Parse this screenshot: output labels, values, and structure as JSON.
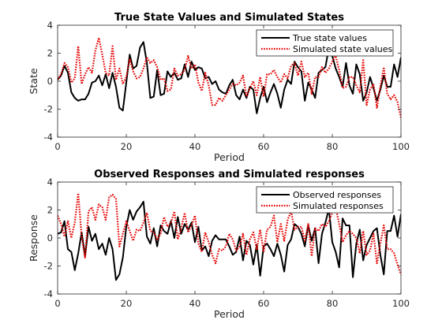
{
  "chart_data": [
    {
      "type": "line",
      "title": "True State Values and Simulated States",
      "xlabel": "Period",
      "ylabel": "State",
      "xlim": [
        0,
        100
      ],
      "ylim": [
        -4,
        4
      ],
      "xticks": [
        0,
        20,
        40,
        60,
        80,
        100
      ],
      "yticks": [
        -4,
        -2,
        0,
        2,
        4
      ],
      "legend_position": "top-right",
      "x": [
        0,
        1,
        2,
        3,
        4,
        5,
        6,
        7,
        8,
        9,
        10,
        11,
        12,
        13,
        14,
        15,
        16,
        17,
        18,
        19,
        20,
        21,
        22,
        23,
        24,
        25,
        26,
        27,
        28,
        29,
        30,
        31,
        32,
        33,
        34,
        35,
        36,
        37,
        38,
        39,
        40,
        41,
        42,
        43,
        44,
        45,
        46,
        47,
        48,
        49,
        50,
        51,
        52,
        53,
        54,
        55,
        56,
        57,
        58,
        59,
        60,
        61,
        62,
        63,
        64,
        65,
        66,
        67,
        68,
        69,
        70,
        71,
        72,
        73,
        74,
        75,
        76,
        77,
        78,
        79,
        80,
        81,
        82,
        83,
        84,
        85,
        86,
        87,
        88,
        89,
        90,
        91,
        92,
        93,
        94,
        95,
        96,
        97,
        98,
        99,
        100
      ],
      "series": [
        {
          "name": "True state values",
          "color": "#000000",
          "style": "solid",
          "values": [
            0.1,
            0.4,
            1.1,
            0.6,
            -0.8,
            -1.2,
            -1.4,
            -1.3,
            -1.3,
            -0.9,
            -0.1,
            0.0,
            0.4,
            -0.3,
            0.5,
            -0.5,
            0.6,
            -0.4,
            -1.9,
            -2.1,
            -0.1,
            1.9,
            0.9,
            1.1,
            2.4,
            2.8,
            1.3,
            -1.2,
            -1.1,
            0.8,
            -1.0,
            -0.9,
            0.7,
            0.3,
            0.6,
            0.1,
            0.2,
            1.2,
            0.3,
            1.4,
            0.8,
            1.0,
            0.9,
            0.2,
            0.3,
            -0.2,
            0.0,
            -0.6,
            -0.8,
            -0.9,
            -0.3,
            0.1,
            -1.0,
            -1.3,
            -0.6,
            -1.2,
            -0.4,
            -0.6,
            -2.3,
            -1.2,
            -0.4,
            -1.5,
            -0.8,
            -0.2,
            -0.9,
            -1.9,
            -0.6,
            0.1,
            -0.2,
            1.4,
            1.0,
            0.7,
            -1.4,
            -0.1,
            -0.6,
            -1.2,
            0.6,
            0.8,
            1.0,
            2.4,
            1.8,
            0.9,
            0.3,
            -0.4,
            1.3,
            -0.3,
            -0.9,
            1.2,
            0.5,
            -1.4,
            -0.8,
            0.3,
            -0.5,
            -1.4,
            -0.6,
            0.4,
            -0.4,
            -0.4,
            1.2,
            0.3,
            1.7
          ]
        },
        {
          "name": "Simulated state values",
          "color": "#e60000",
          "style": "dotted",
          "values": [
            0.1,
            0.5,
            1.3,
            1.0,
            -0.1,
            0.2,
            2.5,
            -0.2,
            0.5,
            1.0,
            0.6,
            2.2,
            3.1,
            1.9,
            0.6,
            0.4,
            2.5,
            0.1,
            0.9,
            -0.2,
            0.3,
            1.6,
            0.7,
            0.2,
            0.3,
            0.9,
            1.7,
            1.3,
            1.5,
            1.0,
            0.1,
            0.2,
            -0.7,
            -0.6,
            0.9,
            0.4,
            0.5,
            0.8,
            1.8,
            0.9,
            1.2,
            -0.1,
            -0.7,
            0.6,
            -0.3,
            -1.7,
            -1.7,
            -1.2,
            -1.4,
            -1.0,
            -0.6,
            -0.2,
            -0.3,
            -0.1,
            0.4,
            -1.1,
            -0.5,
            0.0,
            -1.0,
            0.3,
            -1.1,
            0.5,
            0.5,
            0.8,
            0.3,
            -0.1,
            0.5,
            0.2,
            1.1,
            1.3,
            0.4,
            1.4,
            0.3,
            0.6,
            -0.9,
            0.3,
            0.3,
            1.0,
            0.6,
            0.9,
            1.4,
            1.8,
            0.8,
            -0.5,
            -0.4,
            0.3,
            0.3,
            -0.3,
            -0.8,
            1.5,
            -1.7,
            -0.6,
            -0.2,
            -1.9,
            -0.4,
            1.0,
            -0.9,
            -1.3,
            -1.0,
            -1.5,
            -2.6
          ]
        }
      ]
    },
    {
      "type": "line",
      "title": "Observed Responses and Simulated responses",
      "xlabel": "Period",
      "ylabel": "Response",
      "xlim": [
        0,
        100
      ],
      "ylim": [
        -4,
        4
      ],
      "xticks": [
        0,
        20,
        40,
        60,
        80,
        100
      ],
      "yticks": [
        -4,
        -2,
        0,
        2,
        4
      ],
      "legend_position": "top-right",
      "x": [
        0,
        1,
        2,
        3,
        4,
        5,
        6,
        7,
        8,
        9,
        10,
        11,
        12,
        13,
        14,
        15,
        16,
        17,
        18,
        19,
        20,
        21,
        22,
        23,
        24,
        25,
        26,
        27,
        28,
        29,
        30,
        31,
        32,
        33,
        34,
        35,
        36,
        37,
        38,
        39,
        40,
        41,
        42,
        43,
        44,
        45,
        46,
        47,
        48,
        49,
        50,
        51,
        52,
        53,
        54,
        55,
        56,
        57,
        58,
        59,
        60,
        61,
        62,
        63,
        64,
        65,
        66,
        67,
        68,
        69,
        70,
        71,
        72,
        73,
        74,
        75,
        76,
        77,
        78,
        79,
        80,
        81,
        82,
        83,
        84,
        85,
        86,
        87,
        88,
        89,
        90,
        91,
        92,
        93,
        94,
        95,
        96,
        97,
        98,
        99,
        100
      ],
      "series": [
        {
          "name": "Observed responses",
          "color": "#000000",
          "style": "solid",
          "values": [
            0.3,
            0.4,
            1.2,
            -0.8,
            -1.0,
            -2.3,
            -1.1,
            0.4,
            -1.3,
            0.8,
            -0.2,
            0.3,
            -0.8,
            -0.4,
            -1.2,
            0.0,
            -0.8,
            -3.0,
            -2.6,
            -1.4,
            0.8,
            2.0,
            1.3,
            1.9,
            2.2,
            2.6,
            0.1,
            -0.4,
            0.7,
            -0.6,
            0.9,
            0.5,
            0.3,
            1.2,
            0.0,
            1.5,
            0.3,
            1.0,
            0.6,
            1.1,
            -0.3,
            0.8,
            -0.9,
            -0.6,
            -1.3,
            -0.2,
            0.2,
            -0.1,
            -0.1,
            -0.1,
            -0.6,
            -1.2,
            -1.0,
            0.1,
            -1.6,
            -0.2,
            -0.5,
            -1.9,
            -0.5,
            -2.7,
            -0.6,
            -0.4,
            -0.8,
            -1.3,
            -0.4,
            -1.2,
            -2.4,
            -0.5,
            -0.1,
            1.0,
            0.8,
            0.3,
            -0.6,
            0.9,
            -0.2,
            0.7,
            -1.8,
            0.3,
            1.1,
            2.1,
            -0.3,
            -1.0,
            -2.1,
            1.4,
            0.9,
            0.9,
            -2.8,
            -0.4,
            0.6,
            -1.6,
            -0.5,
            0.0,
            0.5,
            0.7,
            -1.2,
            -2.6,
            0.5,
            0.5,
            1.6,
            0.1,
            1.7
          ]
        },
        {
          "name": "Simulated responses",
          "color": "#e60000",
          "style": "dotted",
          "values": [
            1.6,
            1.0,
            0.1,
            1.2,
            0.0,
            1.1,
            3.2,
            0.1,
            -1.4,
            1.9,
            2.2,
            1.3,
            2.4,
            2.2,
            1.3,
            2.9,
            3.1,
            2.8,
            -0.6,
            0.3,
            1.2,
            0.5,
            -0.2,
            0.6,
            0.5,
            1.1,
            1.8,
            0.5,
            0.4,
            -0.1,
            0.3,
            1.5,
            0.8,
            1.1,
            1.9,
            -0.1,
            0.7,
            1.8,
            0.4,
            0.9,
            1.6,
            -0.4,
            -1.0,
            0.4,
            -0.3,
            -1.2,
            -1.8,
            -0.8,
            -0.9,
            -0.6,
            0.3,
            -0.1,
            -0.9,
            -0.6,
            0.3,
            -1.2,
            -0.1,
            0.4,
            -0.8,
            0.6,
            -1.0,
            0.6,
            0.8,
            1.6,
            -0.3,
            1.0,
            -0.2,
            1.3,
            1.9,
            0.6,
            0.8,
            0.8,
            -0.2,
            1.0,
            -1.3,
            0.7,
            0.5,
            1.0,
            0.8,
            1.2,
            1.8,
            2.2,
            1.0,
            -0.3,
            0.2,
            0.5,
            0.3,
            0.0,
            -1.1,
            0.5,
            -1.2,
            -0.9,
            0.3,
            -1.8,
            -0.4,
            0.9,
            -0.8,
            -0.8,
            -1.1,
            -1.9,
            -2.6
          ]
        }
      ]
    }
  ]
}
